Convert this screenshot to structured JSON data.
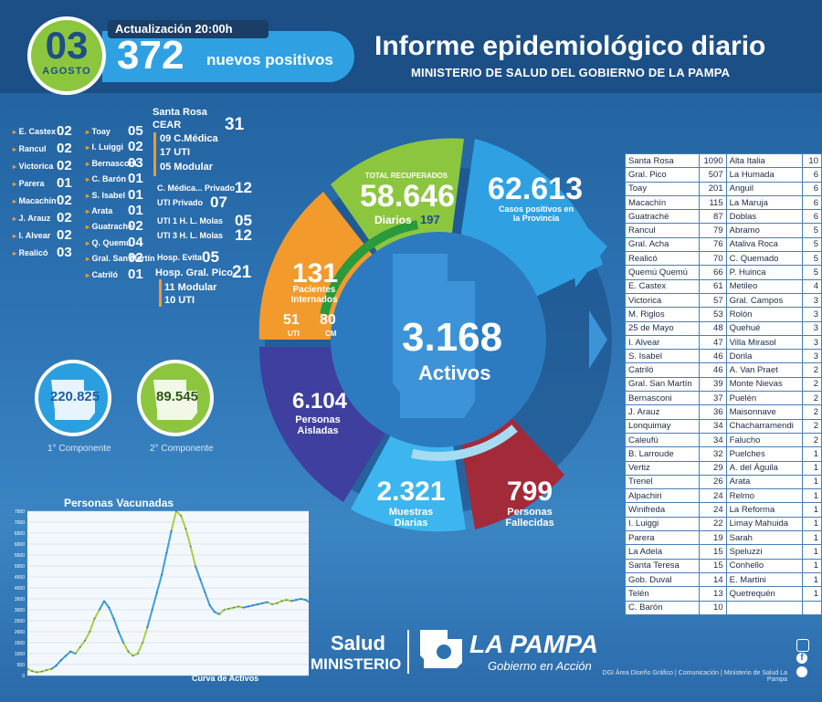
{
  "header": {
    "day": "03",
    "month": "AGOSTO",
    "update": "Actualización 20:00h",
    "new_positives": "372",
    "new_positives_label": "nuevos positivos",
    "title": "Informe epidemiológico diario",
    "subtitle": "MINISTERIO DE SALUD DEL GOBIERNO DE LA PAMPA"
  },
  "localities_left": [
    {
      "name": "E. Castex",
      "n": "02"
    },
    {
      "name": "Rancul",
      "n": "02"
    },
    {
      "name": "Victorica",
      "n": "02"
    },
    {
      "name": "Parera",
      "n": "01"
    },
    {
      "name": "Macachín",
      "n": "02"
    },
    {
      "name": "J. Arauz",
      "n": "02"
    },
    {
      "name": "I. Alvear",
      "n": "02"
    },
    {
      "name": "Realicó",
      "n": "03"
    }
  ],
  "localities_mid": [
    {
      "name": "Toay",
      "n": "05"
    },
    {
      "name": "I. Luiggi",
      "n": "02"
    },
    {
      "name": "Bernasconi",
      "n": "03"
    },
    {
      "name": "C. Barón",
      "n": "01"
    },
    {
      "name": "S. Isabel",
      "n": "01"
    },
    {
      "name": "Arata",
      "n": "01"
    },
    {
      "name": "Guatraché",
      "n": "02"
    },
    {
      "name": "Q. Quemú",
      "n": "04"
    },
    {
      "name": "Gral. San Martín",
      "n": "02"
    },
    {
      "name": "Catriló",
      "n": "01"
    }
  ],
  "santa_rosa": {
    "title": "Santa Rosa",
    "cear": "CEAR",
    "cear_n": "31",
    "cmedica": "09 C.Médica",
    "uti": "17 UTI",
    "modular": "05 Modular",
    "cmedica_priv": "C. Médica... Privado",
    "cmedica_priv_n": "12",
    "uti_priv": "UTI Privado",
    "uti_priv_n": "07",
    "uti1": "UTI 1 H. L. Molas",
    "uti1_n": "05",
    "uti3": "UTI 3 H. L. Molas",
    "uti3_n": "12",
    "evita": "Hosp. Evita",
    "evita_n": "05",
    "gral_pico": "Hosp. Gral. Pico",
    "gral_pico_n": "21",
    "gp_modular": "11 Modular",
    "gp_uti": "10 UTI"
  },
  "components": {
    "first_value": "220.825",
    "first_label": "1° Componente",
    "second_value": "89.545",
    "second_label": "2° Componente"
  },
  "wheel": {
    "recovered_label": "TOTAL RECUPERADOS",
    "recovered": "58.646",
    "daily_label": "Diarios",
    "daily": "197",
    "positives": "62.613",
    "positives_label": "Casos positivos en la Provincia",
    "hospitalized": "131",
    "hospitalized_label": "Pacientes Internados",
    "uti": "51",
    "uti_label": "UTI",
    "cm": "80",
    "cm_label": "CM",
    "active": "3.168",
    "active_label": "Activos",
    "isolated": "6.104",
    "isolated_label": "Personas Aisladas",
    "samples": "2.321",
    "samples_label": "Muestras Diarias",
    "deaths": "799",
    "deaths_label": "Personas Fallecidas"
  },
  "table_left": [
    [
      "Santa Rosa",
      "1090"
    ],
    [
      "Gral. Pico",
      "507"
    ],
    [
      "Toay",
      "201"
    ],
    [
      "Macachín",
      "115"
    ],
    [
      "Guatraché",
      "87"
    ],
    [
      "Rancul",
      "79"
    ],
    [
      "Gral. Acha",
      "76"
    ],
    [
      "Realicó",
      "70"
    ],
    [
      "Quemú Quemú",
      "66"
    ],
    [
      "E. Castex",
      "61"
    ],
    [
      "Victorica",
      "57"
    ],
    [
      "M. Riglos",
      "53"
    ],
    [
      "25 de Mayo",
      "48"
    ],
    [
      "I. Alvear",
      "47"
    ],
    [
      "S. Isabel",
      "46"
    ],
    [
      "Catriló",
      "46"
    ],
    [
      "Gral. San Martín",
      "39"
    ],
    [
      "Bernasconi",
      "37"
    ],
    [
      "J. Arauz",
      "36"
    ],
    [
      "Lonquimay",
      "34"
    ],
    [
      "Caleufú",
      "34"
    ],
    [
      "B. Larroude",
      "32"
    ],
    [
      "Vertiz",
      "29"
    ],
    [
      "Trenel",
      "26"
    ],
    [
      "Alpachiri",
      "24"
    ],
    [
      "Winifreda",
      "24"
    ],
    [
      "I. Luiggi",
      "22"
    ],
    [
      "Parera",
      "19"
    ],
    [
      "La Adela",
      "15"
    ],
    [
      "Santa Teresa",
      "15"
    ],
    [
      "Gob. Duval",
      "14"
    ],
    [
      "Telén",
      "13"
    ],
    [
      "C. Barón",
      "10"
    ]
  ],
  "table_right": [
    [
      "Alta Italia",
      "10"
    ],
    [
      "La Humada",
      "6"
    ],
    [
      "Anguil",
      "6"
    ],
    [
      "La Maruja",
      "6"
    ],
    [
      "Doblas",
      "6"
    ],
    [
      "Abramo",
      "5"
    ],
    [
      "Ataliva Roca",
      "5"
    ],
    [
      "C. Quemado",
      "5"
    ],
    [
      "P. Huinca",
      "5"
    ],
    [
      "Metileo",
      "4"
    ],
    [
      "Gral. Campos",
      "3"
    ],
    [
      "Rolón",
      "3"
    ],
    [
      "Quehué",
      "3"
    ],
    [
      "Villa Mirasol",
      "3"
    ],
    [
      "Dorila",
      "3"
    ],
    [
      "A. Van Praet",
      "2"
    ],
    [
      "Monte Nievas",
      "2"
    ],
    [
      "Puelén",
      "2"
    ],
    [
      "Maisonnave",
      "2"
    ],
    [
      "Chacharramendi",
      "2"
    ],
    [
      "Falucho",
      "2"
    ],
    [
      "Puelches",
      "1"
    ],
    [
      "A. del Águila",
      "1"
    ],
    [
      "Arata",
      "1"
    ],
    [
      "Relmo",
      "1"
    ],
    [
      "La Reforma",
      "1"
    ],
    [
      "Limay Mahuida",
      "1"
    ],
    [
      "Sarah",
      "1"
    ],
    [
      "Speluzzi",
      "1"
    ],
    [
      "Conhello",
      "1"
    ],
    [
      "E. Martini",
      "1"
    ],
    [
      "Quetrequén",
      "1"
    ]
  ],
  "chart_data": {
    "type": "line",
    "title": "Personas Vacunadas",
    "xlabel": "Curva de Activos",
    "ylabel": "",
    "ylim": [
      0,
      7500
    ],
    "yticks": [
      "7500",
      "7000",
      "6500",
      "6000",
      "5500",
      "5000",
      "4500",
      "4000",
      "3500",
      "3000",
      "2500",
      "2000",
      "1500",
      "1000",
      "500",
      "0"
    ],
    "x": [
      0,
      1,
      2,
      3,
      4,
      5,
      6,
      7,
      8,
      9,
      10,
      11,
      12,
      13,
      14,
      15,
      16,
      17,
      18,
      19,
      20,
      21,
      22,
      23,
      24,
      25,
      26,
      27,
      28,
      29,
      30,
      31,
      32,
      33,
      34,
      35,
      36,
      37,
      38,
      39,
      40,
      41,
      42,
      43,
      44,
      45,
      46,
      47,
      48,
      49,
      50,
      51,
      52,
      53,
      54,
      55,
      56,
      57,
      58,
      59
    ],
    "series": [
      {
        "name": "Curva de Activos",
        "values": [
          300,
          200,
          150,
          180,
          250,
          300,
          450,
          700,
          900,
          1100,
          1000,
          1300,
          1600,
          2000,
          2600,
          3000,
          3400,
          3100,
          2600,
          2000,
          1500,
          1100,
          900,
          1000,
          1500,
          2200,
          3000,
          3800,
          4600,
          5600,
          6600,
          7500,
          7300,
          6700,
          5900,
          5000,
          4400,
          3800,
          3200,
          2900,
          2800,
          3000,
          3050,
          3100,
          3150,
          3100,
          3150,
          3200,
          3250,
          3300,
          3350,
          3250,
          3300,
          3400,
          3450,
          3400,
          3450,
          3500,
          3450,
          3300
        ]
      }
    ]
  },
  "footer": {
    "salud": "Salud",
    "ministerio": "MINISTERIO",
    "la_pampa": "LA PAMPA",
    "gobierno": "Gobierno en Acción",
    "credits": "DGI Área Diseño Gráfico | Comunicación | Ministerio de Salud La Pampa"
  },
  "colors": {
    "green": "#8cc63f",
    "orange": "#f39a2d",
    "blue": "#2fa1e3",
    "purple": "#3f3fa0",
    "red": "#a32a38",
    "light_blue": "#3db5ee"
  },
  "icons": [
    "instagram-icon",
    "facebook-icon",
    "twitter-icon"
  ]
}
